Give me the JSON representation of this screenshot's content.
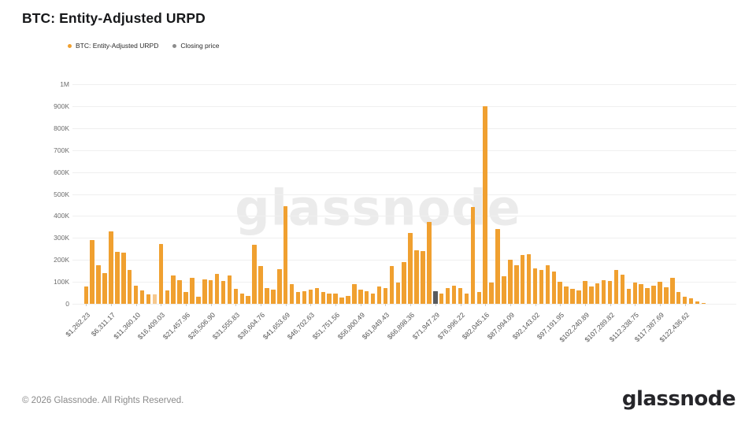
{
  "header": {
    "title": "BTC: Entity-Adjusted URPD"
  },
  "legend": {
    "items": [
      {
        "label": "BTC: Entity-Adjusted URPD",
        "color": "#F0A030"
      },
      {
        "label": "Closing price",
        "color": "#8C8C8C"
      }
    ]
  },
  "watermark": {
    "text": "glassnode"
  },
  "footer": {
    "copyright": "© 2026 Glassnode. All Rights Reserved.",
    "logo_text": "glassnode"
  },
  "chart_data": {
    "type": "bar",
    "title": "BTC: Entity-Adjusted URPD",
    "grid": true,
    "legend_position": "top-left",
    "ylim": [
      0,
      1000000
    ],
    "yticks": [
      {
        "value": 0,
        "label": "0"
      },
      {
        "value": 100000,
        "label": "100K"
      },
      {
        "value": 200000,
        "label": "200K"
      },
      {
        "value": 300000,
        "label": "300K"
      },
      {
        "value": 400000,
        "label": "400K"
      },
      {
        "value": 500000,
        "label": "500K"
      },
      {
        "value": 600000,
        "label": "600K"
      },
      {
        "value": 700000,
        "label": "700K"
      },
      {
        "value": 800000,
        "label": "800K"
      },
      {
        "value": 900000,
        "label": "900K"
      },
      {
        "value": 1000000,
        "label": "1M"
      }
    ],
    "x_tick_every": 4,
    "x_tick_labels": [
      "$1,262.23",
      "$6,311.17",
      "$11,360.10",
      "$16,409.03",
      "$21,457.96",
      "$26,506.90",
      "$31,555.83",
      "$36,604.76",
      "$41,653.69",
      "$46,702.63",
      "$51,751.56",
      "$56,800.49",
      "$61,849.43",
      "$66,898.36",
      "$71,947.29",
      "$76,996.22",
      "$82,045.16",
      "$87,094.09",
      "$92,143.02",
      "$97,191.95",
      "$102,240.89",
      "$107,289.82",
      "$112,338.75",
      "$117,387.69",
      "$122,436.62"
    ],
    "series": [
      {
        "name": "BTC: Entity-Adjusted URPD",
        "color": "#F0A030",
        "values": [
          80000,
          290000,
          175000,
          138000,
          330000,
          235000,
          232000,
          154000,
          84000,
          60000,
          43000,
          43000,
          274000,
          60000,
          130000,
          106000,
          55000,
          120000,
          31000,
          112000,
          108000,
          136000,
          103000,
          130000,
          67000,
          46000,
          36000,
          268000,
          172000,
          72000,
          64000,
          156000,
          444000,
          91000,
          52000,
          58000,
          66000,
          72000,
          55000,
          48000,
          46000,
          30000,
          36000,
          88000,
          65000,
          57000,
          45000,
          80000,
          70000,
          173000,
          95000,
          190000,
          324000,
          244000,
          240000,
          372000,
          58000,
          48000,
          72000,
          82000,
          70000,
          45000,
          440000,
          52000,
          900000,
          95000,
          340000,
          124000,
          199000,
          175000,
          222000,
          226000,
          162000,
          154000,
          175000,
          148000,
          100000,
          79000,
          67000,
          60000,
          103000,
          79000,
          94000,
          108000,
          103000,
          155000,
          132000,
          67000,
          96000,
          91000,
          72000,
          82000,
          100000,
          76000,
          120000,
          55000,
          34000,
          24000,
          12000,
          5000
        ]
      }
    ],
    "closing_price": {
      "index": 56,
      "color": "#595B5E",
      "label": "Closing price",
      "price_bucket": "$71,947.29"
    },
    "light_bar_index": 11,
    "light_bar_color": "#F6C88D"
  }
}
